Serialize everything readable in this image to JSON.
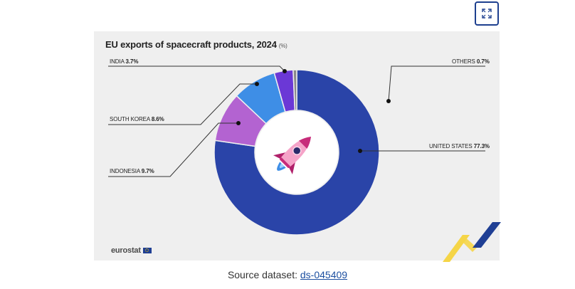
{
  "chart_data": {
    "type": "pie",
    "title": "EU exports of spacecraft products, 2024",
    "unit": "(%)",
    "slices": [
      {
        "name": "UNITED STATES",
        "value": 77.3,
        "label": "77.3%",
        "color": "#2a44a8"
      },
      {
        "name": "INDONESIA",
        "value": 9.7,
        "label": "9.7%",
        "color": "#b363d1"
      },
      {
        "name": "SOUTH KOREA",
        "value": 8.6,
        "label": "8.6%",
        "color": "#3e8ee6"
      },
      {
        "name": "INDIA",
        "value": 3.7,
        "label": "3.7%",
        "color": "#6b38d6"
      },
      {
        "name": "OTHERS",
        "value": 0.7,
        "label": "0.7%",
        "color": "#8a8a8a"
      }
    ]
  },
  "brand": {
    "name": "eurostat"
  },
  "source": {
    "prefix": "Source dataset:",
    "link": "ds-045409"
  },
  "icons": {
    "expand": "expand-icon",
    "center": "rocket-icon"
  }
}
